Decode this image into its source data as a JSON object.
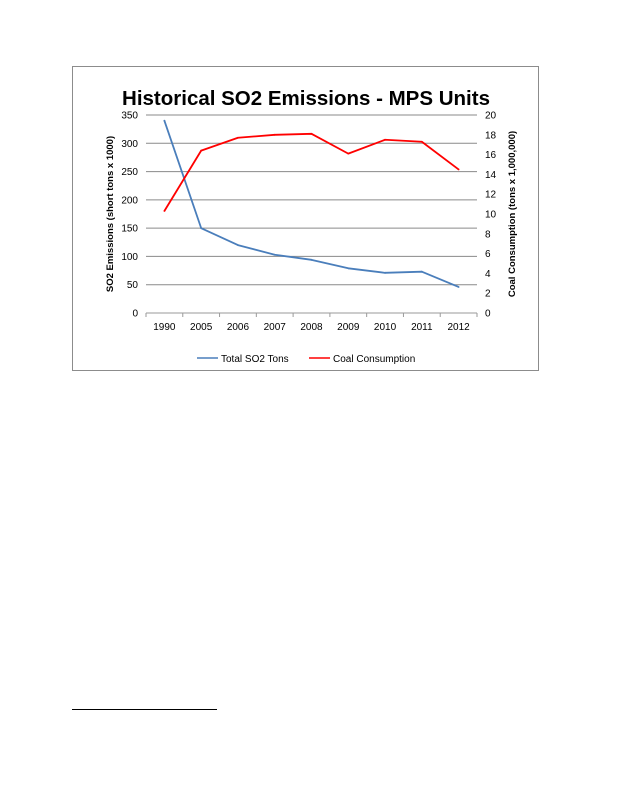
{
  "chart_data": {
    "type": "line",
    "title": "Historical SO2 Emissions - MPS Units",
    "categories": [
      "1990",
      "2005",
      "2006",
      "2007",
      "2008",
      "2009",
      "2010",
      "2011",
      "2012"
    ],
    "y_left": {
      "label": "SO2  Emissions (short tons x 1000)",
      "ylim": [
        0,
        350
      ],
      "ticks": [
        0,
        50,
        100,
        150,
        200,
        250,
        300,
        350
      ]
    },
    "y_right": {
      "label": "Coal Consumption (tons x 1,000,000)",
      "ylim": [
        0,
        20
      ],
      "ticks": [
        0,
        2,
        4,
        6,
        8,
        10,
        12,
        14,
        16,
        18,
        20
      ]
    },
    "grid": "horizontal",
    "legend_position": "bottom",
    "series": [
      {
        "name": "Total SO2 Tons",
        "axis": "left",
        "color": "#4a7ebb",
        "values": [
          340,
          150,
          120,
          103,
          94,
          79,
          71,
          73,
          46
        ]
      },
      {
        "name": "Coal Consumption",
        "axis": "right",
        "color": "#ff0000",
        "values": [
          10.3,
          16.4,
          17.7,
          18.0,
          18.1,
          16.1,
          17.5,
          17.3,
          14.5
        ]
      }
    ]
  }
}
